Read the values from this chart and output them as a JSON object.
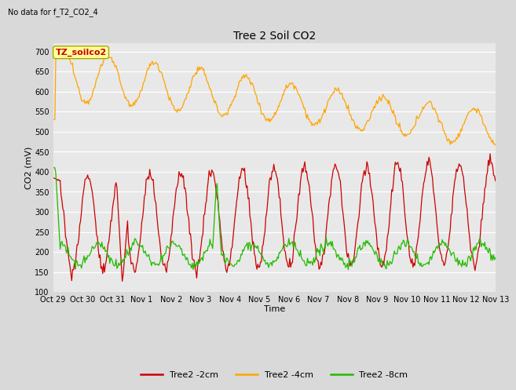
{
  "title": "Tree 2 Soil CO2",
  "subtitle": "No data for f_T2_CO2_4",
  "xlabel": "Time",
  "ylabel": "CO2 (mV)",
  "ylim": [
    100,
    720
  ],
  "yticks": [
    100,
    150,
    200,
    250,
    300,
    350,
    400,
    450,
    500,
    550,
    600,
    650,
    700
  ],
  "background_color": "#d9d9d9",
  "plot_bg_color": "#e8e8e8",
  "grid_color": "#ffffff",
  "legend_entries": [
    "Tree2 -2cm",
    "Tree2 -4cm",
    "Tree2 -8cm"
  ],
  "line_colors": [
    "#cc0000",
    "#ffa500",
    "#22bb00"
  ],
  "tz_label": "TZ_soilco2",
  "tz_box_color": "#ffff99",
  "tz_text_color": "#cc0000",
  "x_tick_labels": [
    "Oct 29",
    "Oct 30",
    "Oct 31",
    "Nov 1",
    "Nov 2",
    "Nov 3",
    "Nov 4",
    "Nov 5",
    "Nov 6",
    "Nov 7",
    "Nov 8",
    "Nov 9",
    "Nov 10",
    "Nov 11",
    "Nov 12",
    "Nov 13"
  ],
  "title_fontsize": 10,
  "subtitle_fontsize": 7,
  "axis_label_fontsize": 8,
  "tick_fontsize": 7,
  "legend_fontsize": 8,
  "tz_fontsize": 8
}
